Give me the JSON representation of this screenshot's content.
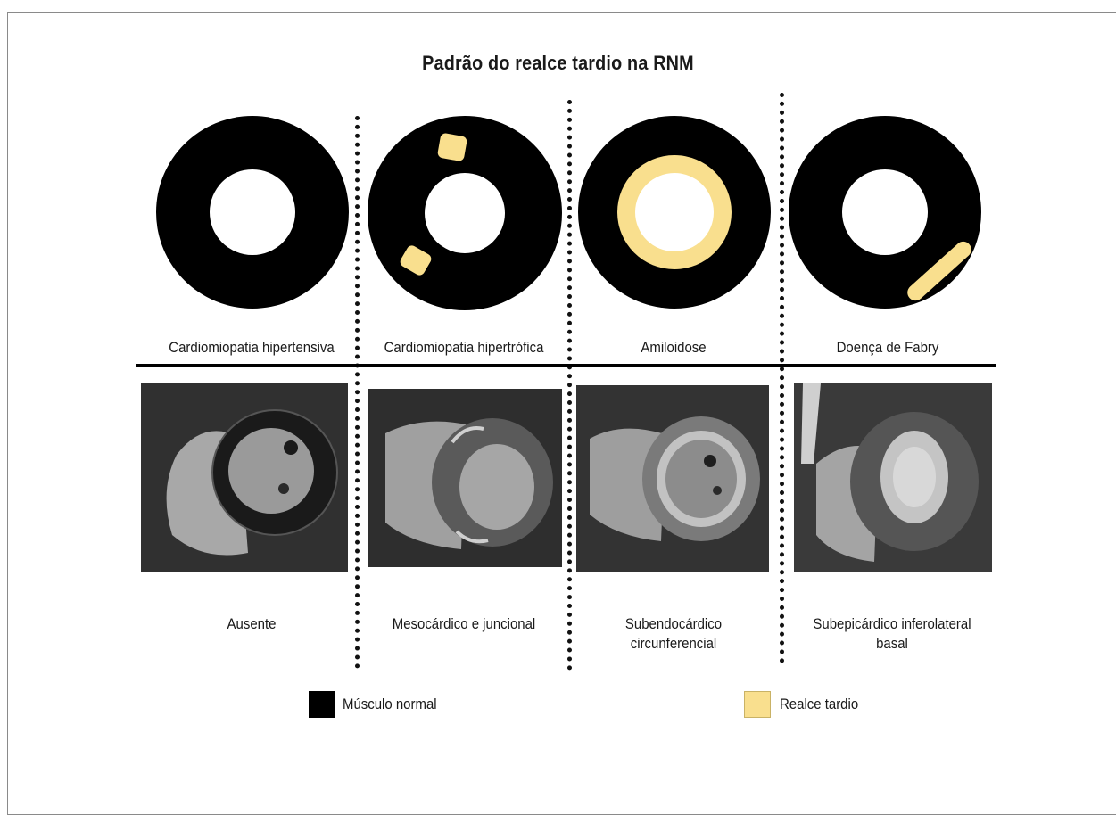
{
  "title": "Padrão do realce tardio na RNM",
  "colors": {
    "normal_muscle": "#000000",
    "late_enhancement": "#f9df8e"
  },
  "columns": [
    {
      "disease": "Cardiomiopatia hipertensiva",
      "pattern": "Ausente"
    },
    {
      "disease": "Cardiomiopatia hipertrófica",
      "pattern": "Mesocárdico e juncional"
    },
    {
      "disease": "Amiloidose",
      "pattern_line1": "Subendocárdico",
      "pattern_line2": "circunferencial"
    },
    {
      "disease": "Doença de Fabry",
      "pattern_line1": "Subepicárdico inferolateral",
      "pattern_line2": "basal"
    }
  ],
  "legend": {
    "normal": "Músculo normal",
    "late": "Realce tardio"
  }
}
